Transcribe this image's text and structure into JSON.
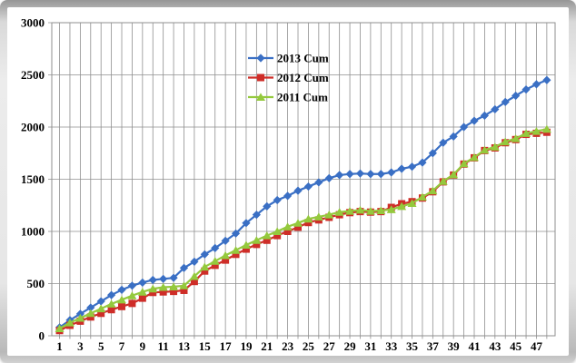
{
  "chart_data": {
    "type": "line",
    "title": "",
    "xlabel": "",
    "ylabel": "",
    "ylim": [
      0,
      3000
    ],
    "yticks": [
      0,
      500,
      1000,
      1500,
      2000,
      2500,
      3000
    ],
    "xticks": [
      1,
      3,
      5,
      7,
      9,
      11,
      13,
      15,
      17,
      19,
      21,
      23,
      25,
      27,
      29,
      31,
      33,
      35,
      37,
      39,
      41,
      43,
      45,
      47
    ],
    "x": [
      1,
      2,
      3,
      4,
      5,
      6,
      7,
      8,
      9,
      10,
      11,
      12,
      13,
      14,
      15,
      16,
      17,
      18,
      19,
      20,
      21,
      22,
      23,
      24,
      25,
      26,
      27,
      28,
      29,
      30,
      31,
      32,
      33,
      34,
      35,
      36,
      37,
      38,
      39,
      40,
      41,
      42,
      43,
      44,
      45,
      46,
      47,
      48
    ],
    "grid": true,
    "gridline_color": "#8f8f8f",
    "plot_border_color": "#8f8f8f",
    "axis_text_color": "#000000",
    "legend_position": "top-center",
    "series": [
      {
        "name": "2013 Cum",
        "color": "#3a6fc4",
        "marker": "diamond",
        "values": [
          80,
          150,
          210,
          270,
          330,
          390,
          440,
          480,
          510,
          535,
          545,
          555,
          650,
          710,
          780,
          840,
          910,
          980,
          1080,
          1160,
          1240,
          1300,
          1340,
          1390,
          1430,
          1470,
          1510,
          1540,
          1550,
          1555,
          1550,
          1550,
          1565,
          1600,
          1620,
          1660,
          1750,
          1850,
          1910,
          2000,
          2060,
          2110,
          2170,
          2240,
          2300,
          2360,
          2410,
          2450
        ]
      },
      {
        "name": "2012 Cum",
        "color": "#ce2d28",
        "marker": "square",
        "values": [
          50,
          100,
          140,
          180,
          215,
          250,
          280,
          310,
          360,
          415,
          420,
          425,
          435,
          520,
          620,
          675,
          725,
          780,
          830,
          875,
          915,
          960,
          1000,
          1040,
          1085,
          1110,
          1135,
          1160,
          1180,
          1190,
          1185,
          1190,
          1230,
          1265,
          1285,
          1320,
          1380,
          1475,
          1540,
          1645,
          1705,
          1775,
          1800,
          1850,
          1880,
          1930,
          1940,
          1950
        ]
      },
      {
        "name": "2011 Cum",
        "color": "#94c93d",
        "marker": "triangle",
        "values": [
          70,
          125,
          170,
          215,
          260,
          305,
          345,
          385,
          420,
          450,
          465,
          470,
          480,
          570,
          660,
          715,
          770,
          820,
          870,
          915,
          960,
          1000,
          1045,
          1080,
          1120,
          1140,
          1160,
          1185,
          1195,
          1205,
          1195,
          1200,
          1210,
          1240,
          1270,
          1330,
          1390,
          1480,
          1545,
          1650,
          1710,
          1780,
          1810,
          1860,
          1890,
          1940,
          1960,
          1980
        ]
      }
    ]
  }
}
